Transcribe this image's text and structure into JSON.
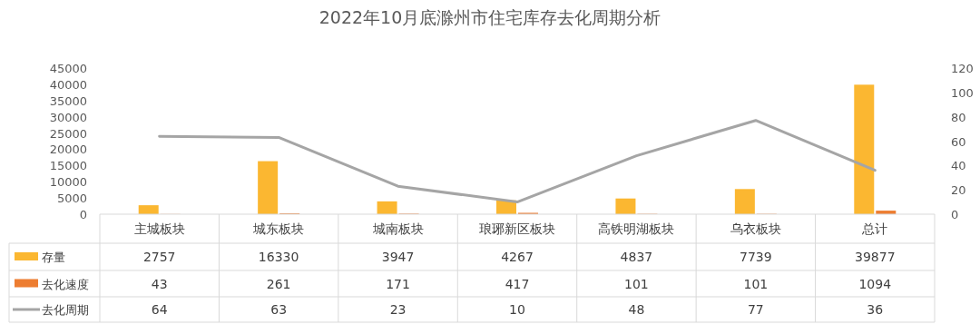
{
  "chart_data": {
    "type": "bar",
    "title": "2022年10月底滁州市住宅库存去化周期分析",
    "categories": [
      "主城板块",
      "城东板块",
      "城南板块",
      "琅琊新区板块",
      "高铁明湖板块",
      "乌衣板块",
      "总计"
    ],
    "series": [
      {
        "name": "存量",
        "color": "#fbb731",
        "values": [
          2757,
          16330,
          3947,
          4267,
          4837,
          7739,
          39877
        ]
      },
      {
        "name": "去化速度",
        "color": "#ed7d31",
        "values": [
          43,
          261,
          171,
          417,
          101,
          101,
          1094
        ]
      },
      {
        "name": "去化周期",
        "type": "line",
        "axis": "y2",
        "color": "#a5a5a5",
        "values": [
          64,
          63,
          23,
          10,
          48,
          77,
          36
        ]
      }
    ],
    "ylim": [
      0,
      45000
    ],
    "yticks": [
      0,
      5000,
      10000,
      15000,
      20000,
      25000,
      30000,
      35000,
      40000,
      45000
    ],
    "y2lim": [
      0,
      120
    ],
    "y2ticks": [
      0,
      20,
      40,
      60,
      80,
      100,
      120
    ],
    "data_labels": true,
    "legend": "bottom",
    "grid": false
  }
}
